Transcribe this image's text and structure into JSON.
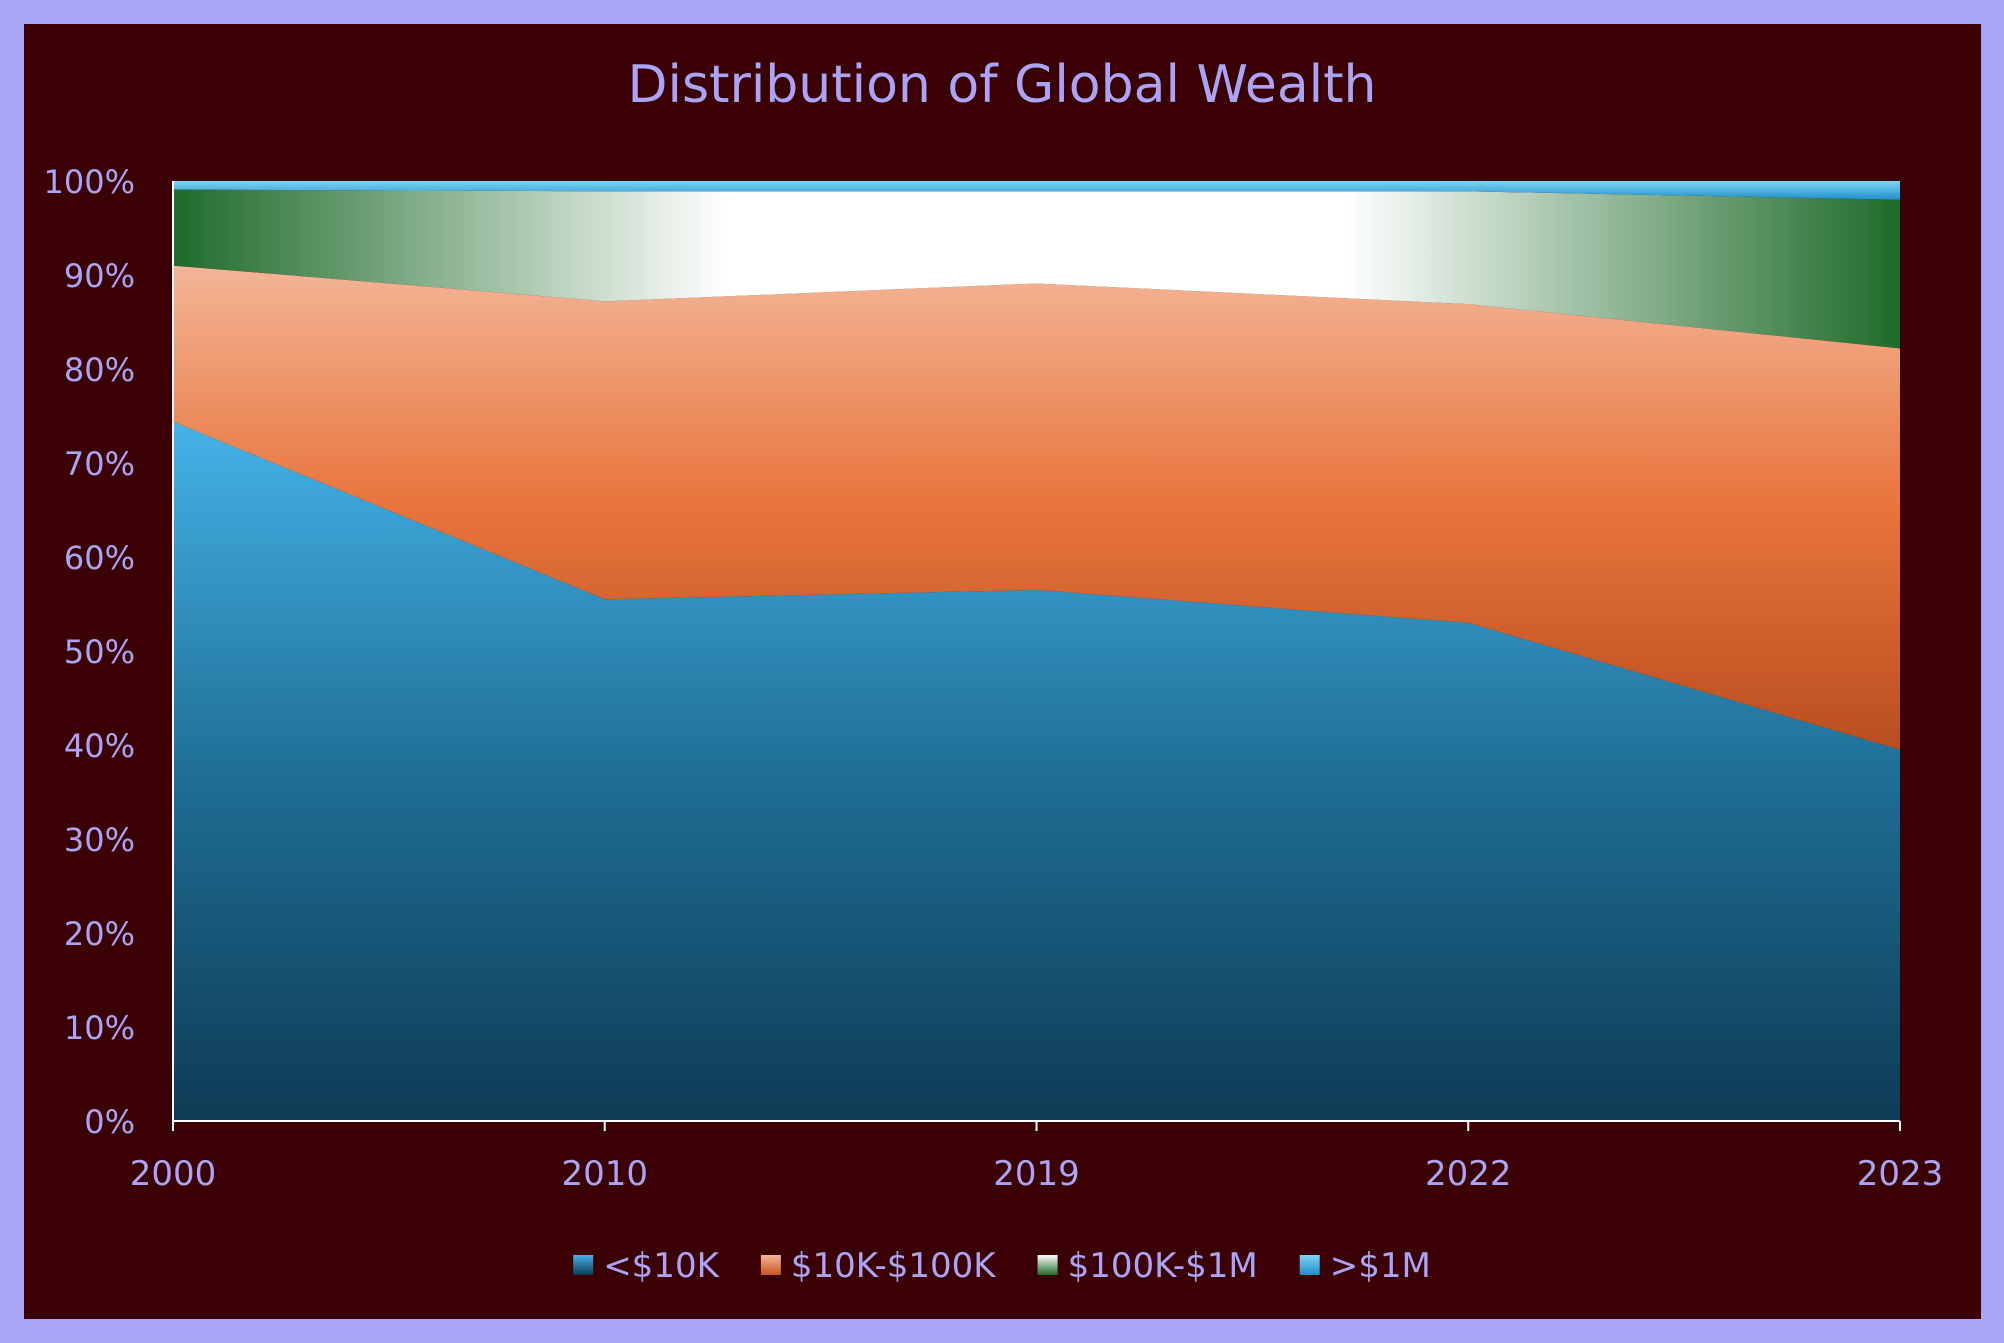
{
  "chart_data": {
    "type": "area",
    "stacked": true,
    "normalized": true,
    "title": "Distribution of Global Wealth",
    "xlabel": "",
    "ylabel": "",
    "categories": [
      "2000",
      "2010",
      "2019",
      "2022",
      "2023"
    ],
    "ylim": [
      0,
      100
    ],
    "y_tick_labels": [
      "0%",
      "10%",
      "20%",
      "30%",
      "40%",
      "50%",
      "60%",
      "70%",
      "80%",
      "90%",
      "100%"
    ],
    "grid": false,
    "legend_position": "bottom",
    "series": [
      {
        "name": "<$10K",
        "values": [
          74.4,
          55.5,
          56.5,
          53.0,
          39.5
        ],
        "color": "#1f6f96"
      },
      {
        "name": "$10K-$100K",
        "values": [
          16.6,
          31.7,
          32.6,
          33.9,
          42.7
        ],
        "color": "#e8743b"
      },
      {
        "name": "$100K-$1M",
        "values": [
          8.1,
          11.7,
          9.8,
          12.0,
          15.8
        ],
        "color": "#1e6b2a"
      },
      {
        "name": ">$1M",
        "values": [
          0.9,
          1.1,
          1.1,
          1.1,
          2.0
        ],
        "color": "#29a8e0"
      }
    ]
  },
  "colors": {
    "frame": "#a9a4f5",
    "plot_background": "#3b0004",
    "text": "#a9a4f5",
    "axis": "#ffffff"
  }
}
